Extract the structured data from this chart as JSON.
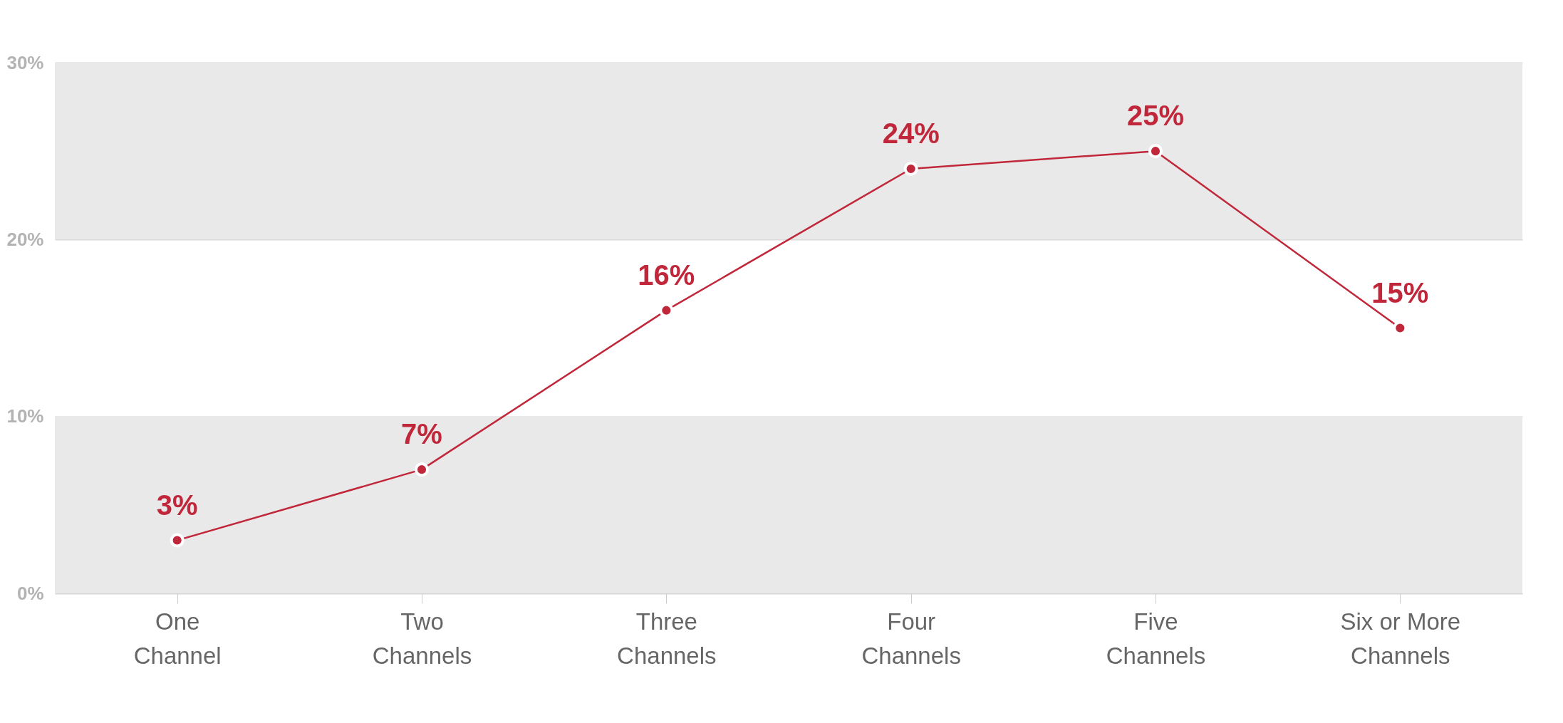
{
  "chart_data": {
    "type": "line",
    "categories": [
      "One Channel",
      "Two Channels",
      "Three Channels",
      "Four Channels",
      "Five Channels",
      "Six or More Channels"
    ],
    "series": [
      {
        "color": "#c1273a",
        "values": [
          3,
          7,
          16,
          24,
          25,
          15
        ],
        "value_labels": [
          "3%",
          "7%",
          "16%",
          "24%",
          "25%",
          "15%"
        ]
      }
    ],
    "ylim": [
      0,
      30
    ],
    "yticks": [
      {
        "value": 0,
        "label": "0%"
      },
      {
        "value": 10,
        "label": "10%"
      },
      {
        "value": 20,
        "label": "20%"
      },
      {
        "value": 30,
        "label": "30%"
      }
    ],
    "bands": [
      {
        "axis": "y",
        "from": 0,
        "to": 10,
        "color": "#e9e9e9"
      },
      {
        "axis": "y",
        "from": 20,
        "to": 30,
        "color": "#e9e9e9"
      }
    ],
    "grid": "y",
    "marker": "circle",
    "line_style": "solid"
  }
}
